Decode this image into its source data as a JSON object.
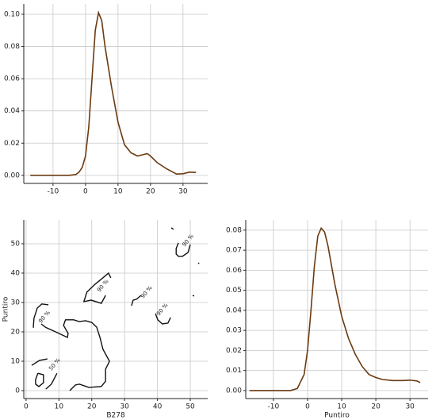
{
  "chart_data": [
    {
      "type": "line",
      "color": "#6b3a10",
      "grid": true,
      "x": [
        -17,
        -5,
        -3,
        -2,
        -1,
        0,
        1,
        2,
        3,
        4,
        5,
        6,
        8,
        10,
        12,
        14,
        16,
        18,
        19,
        20,
        22,
        25,
        28,
        30,
        32,
        34
      ],
      "values": [
        0,
        0,
        0.0005,
        0.002,
        0.005,
        0.012,
        0.03,
        0.06,
        0.09,
        0.101,
        0.096,
        0.08,
        0.055,
        0.033,
        0.019,
        0.014,
        0.012,
        0.013,
        0.0135,
        0.012,
        0.008,
        0.004,
        0.0008,
        0.001,
        0.002,
        0.0018
      ],
      "xlim": [
        -19,
        37.6
      ],
      "xticks": [
        -10,
        0,
        10,
        20,
        30
      ],
      "ylim": [
        -0.005,
        0.1064
      ],
      "yticks": [
        {
          "value": 0,
          "label": "0.00"
        },
        {
          "value": 0.02,
          "label": "0.02"
        },
        {
          "value": 0.04,
          "label": "0.04"
        },
        {
          "value": 0.06,
          "label": "0.06"
        },
        {
          "value": 0.08,
          "label": "0.08"
        },
        {
          "value": 0.1,
          "label": "0.10"
        }
      ]
    },
    {
      "type": "contour",
      "color": "#111111",
      "grid": true,
      "xlabel": "B278",
      "ylabel": "Puntiro",
      "xlim": [
        -0.7,
        55.3
      ],
      "xticks": [
        0,
        10,
        20,
        30,
        40,
        50
      ],
      "ylim": [
        -2.7,
        58.1
      ],
      "yticks": [
        0,
        10,
        20,
        30,
        40,
        50
      ],
      "contours": [
        {
          "x": [
            2.2,
            2.4,
            3.4,
            4.8,
            6.8
          ],
          "y": [
            21.4,
            24.6,
            28.1,
            29.5,
            29.2
          ]
        },
        {
          "x": [
            4.6,
            6.0,
            9,
            12.6,
            12.8,
            11.4,
            12,
            14.5,
            16.2,
            18.1,
            20,
            21.5,
            22.5,
            23.4,
            25.4,
            24.2,
            24.2,
            22.9,
            19.1,
            16.2,
            15,
            13.3
          ],
          "y": [
            22.7,
            21.5,
            20.0,
            18.1,
            19.5,
            22.2,
            24.1,
            24.1,
            23.5,
            23.8,
            23.2,
            21.6,
            18.1,
            14.1,
            10,
            7.3,
            3.2,
            1.4,
            1.1,
            2.2,
            1.9,
            0
          ]
        },
        {
          "x": [
            25.8,
            25.1,
            23.4,
            21,
            18.5,
            17.6,
            19.8,
            22.9,
            24.2
          ],
          "y": [
            38.4,
            40,
            38.4,
            36.2,
            33.5,
            30.3,
            30.8,
            29.7,
            32.4
          ]
        },
        {
          "x": [
            1.7,
            4.1,
            6.5
          ],
          "y": [
            8.6,
            10.3,
            10.8
          ]
        },
        {
          "x": [
            3.6,
            2.9,
            2.9,
            3.9,
            5.3,
            5.3,
            3.6
          ],
          "y": [
            5.9,
            3.8,
            2.2,
            1.4,
            2.7,
            5.4,
            5.9
          ]
        },
        {
          "x": [
            6,
            7.7,
            9.4
          ],
          "y": [
            0.5,
            2.2,
            5.9
          ]
        },
        {
          "x": [
            32.1,
            32.6,
            33.6,
            35
          ],
          "y": [
            28.9,
            30.8,
            31.1,
            32.4
          ]
        },
        {
          "x": [
            39.4,
            40.1,
            41.5,
            43.2,
            44
          ],
          "y": [
            26.2,
            24.1,
            22.7,
            23.0,
            24.9
          ]
        },
        {
          "x": [
            50.0,
            49.3,
            47.6,
            46.4,
            45.7,
            45.7,
            46.4
          ],
          "y": [
            49.7,
            47.0,
            45.7,
            45.7,
            46.5,
            48.4,
            50.3
          ]
        },
        {
          "x": [
            44.2,
            44.9
          ],
          "y": [
            55.4,
            54.9
          ]
        },
        {
          "x": [
            52.4,
            52.7
          ],
          "y": [
            43.2,
            43.5
          ]
        },
        {
          "x": [
            50.7,
            51.2
          ],
          "y": [
            32.4,
            32.2
          ]
        }
      ],
      "contour_labels": [
        {
          "text": "90 %",
          "x": 5.6,
          "y": 25.1
        },
        {
          "text": "90 %",
          "x": 23.4,
          "y": 35.7
        },
        {
          "text": "90 %",
          "x": 36.7,
          "y": 33.5
        },
        {
          "text": "90 %",
          "x": 41.5,
          "y": 27.6
        },
        {
          "text": "90 %",
          "x": 49.3,
          "y": 51.1
        },
        {
          "text": "50 %",
          "x": 8.7,
          "y": 8.9
        }
      ]
    },
    {
      "type": "line",
      "color": "#6b3a10",
      "grid": true,
      "xlabel": "Puntiro",
      "x": [
        -17,
        -5,
        -3,
        -1,
        0,
        1,
        2,
        3,
        4,
        5,
        6,
        8,
        10,
        12,
        14,
        16,
        18,
        20,
        22,
        25,
        28,
        30,
        32,
        33
      ],
      "values": [
        0,
        0,
        0.001,
        0.008,
        0.02,
        0.04,
        0.062,
        0.077,
        0.081,
        0.079,
        0.072,
        0.053,
        0.037,
        0.026,
        0.018,
        0.012,
        0.008,
        0.0065,
        0.0055,
        0.005,
        0.005,
        0.0052,
        0.0048,
        0.004
      ],
      "xlim": [
        -18.1,
        35.3
      ],
      "xticks": [
        -10,
        0,
        10,
        20,
        30
      ],
      "ylim": [
        -0.004,
        0.0851
      ],
      "yticks": [
        {
          "value": 0,
          "label": "0.00"
        },
        {
          "value": 0.01,
          "label": "0.01"
        },
        {
          "value": 0.02,
          "label": "0.02"
        },
        {
          "value": 0.03,
          "label": "0.03"
        },
        {
          "value": 0.04,
          "label": "0.04"
        },
        {
          "value": 0.05,
          "label": "0.05"
        },
        {
          "value": 0.06,
          "label": "0.06"
        },
        {
          "value": 0.07,
          "label": "0.07"
        },
        {
          "value": 0.08,
          "label": "0.08"
        }
      ]
    }
  ]
}
